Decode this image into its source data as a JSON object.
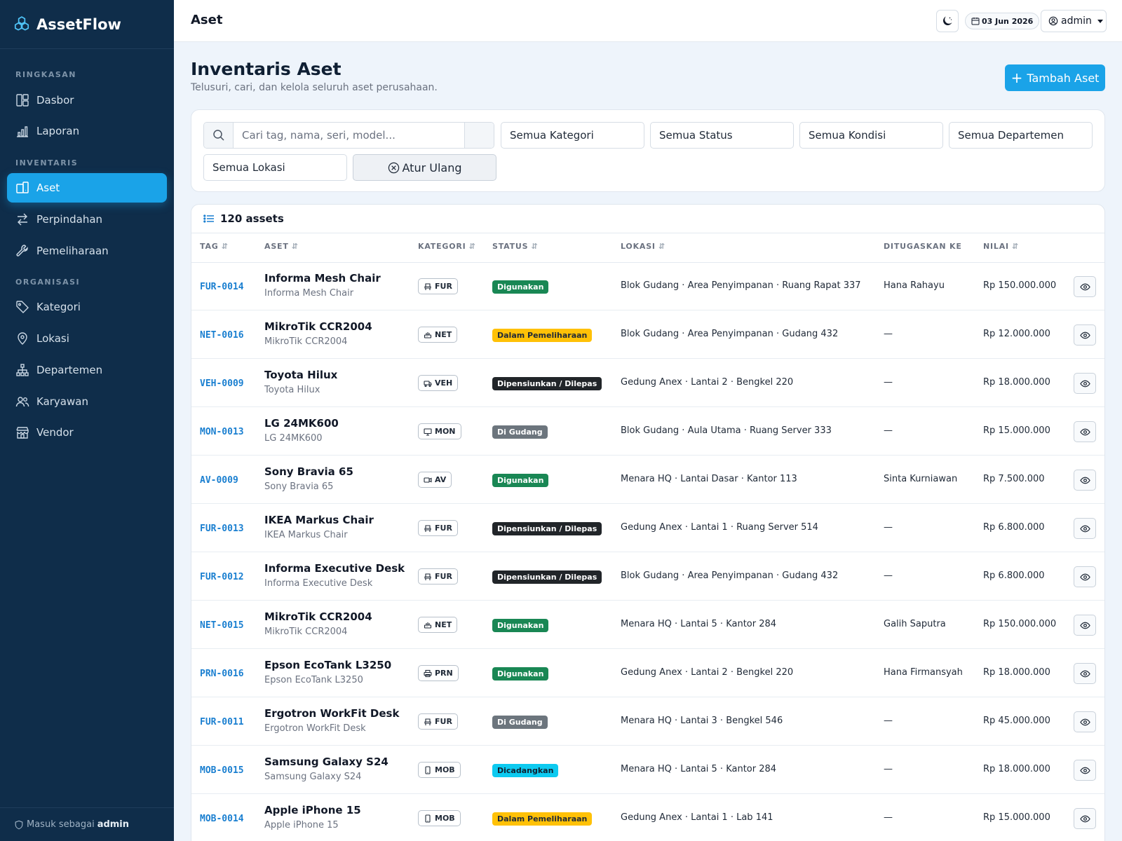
{
  "app": {
    "brand": "AssetFlow"
  },
  "sidebar": {
    "sections": [
      {
        "label": "RINGKASAN"
      },
      {
        "label": "INVENTARIS"
      },
      {
        "label": "ORGANISASI"
      }
    ],
    "items": [
      {
        "label": "Dasbor",
        "icon": "dashboard-icon"
      },
      {
        "label": "Laporan",
        "icon": "chart-icon"
      },
      {
        "label": "Aset",
        "icon": "asset-icon",
        "active": true
      },
      {
        "label": "Perpindahan",
        "icon": "transfer-icon"
      },
      {
        "label": "Pemeliharaan",
        "icon": "wrench-icon"
      },
      {
        "label": "Kategori",
        "icon": "tag-icon"
      },
      {
        "label": "Lokasi",
        "icon": "location-icon"
      },
      {
        "label": "Departemen",
        "icon": "org-icon"
      },
      {
        "label": "Karyawan",
        "icon": "people-icon"
      },
      {
        "label": "Vendor",
        "icon": "shop-icon"
      }
    ],
    "footer": {
      "prefix": "Masuk sebagai",
      "user": "admin"
    }
  },
  "topbar": {
    "title": "Aset",
    "date": "03 Jun 2026",
    "user": "admin"
  },
  "page": {
    "title": "Inventaris Aset",
    "subtitle": "Telusuri, cari, dan kelola seluruh aset perusahaan.",
    "add_button": "Tambah Aset"
  },
  "filters": {
    "search_placeholder": "Cari tag, nama, seri, model...",
    "category": "Semua Kategori",
    "status": "Semua Status",
    "condition": "Semua Kondisi",
    "department": "Semua Departemen",
    "location": "Semua Lokasi",
    "reset": "Atur Ulang"
  },
  "table": {
    "count_label": "120 assets",
    "columns": {
      "tag": "TAG",
      "asset": "ASET",
      "category": "KATEGORI",
      "status": "STATUS",
      "location": "LOKASI",
      "assigned": "DITUGASKAN KE",
      "value": "NILAI"
    },
    "rows": [
      {
        "tag": "FUR-0014",
        "name": "Informa Mesh Chair",
        "model": "Informa Mesh Chair",
        "cat": "FUR",
        "status": "Digunakan",
        "status_style": "green",
        "loc": "Blok Gudang · Area Penyimpanan · Ruang Rapat 337",
        "assigned": "Hana Rahayu",
        "value": "Rp 150.000.000"
      },
      {
        "tag": "NET-0016",
        "name": "MikroTik CCR2004",
        "model": "MikroTik CCR2004",
        "cat": "NET",
        "status": "Dalam Pemeliharaan",
        "status_style": "yellow",
        "loc": "Blok Gudang · Area Penyimpanan · Gudang 432",
        "assigned": "—",
        "value": "Rp 12.000.000"
      },
      {
        "tag": "VEH-0009",
        "name": "Toyota Hilux",
        "model": "Toyota Hilux",
        "cat": "VEH",
        "status": "Dipensiunkan / Dilepas",
        "status_style": "dark",
        "loc": "Gedung Anex · Lantai 2 · Bengkel 220",
        "assigned": "—",
        "value": "Rp 18.000.000"
      },
      {
        "tag": "MON-0013",
        "name": "LG 24MK600",
        "model": "LG 24MK600",
        "cat": "MON",
        "status": "Di Gudang",
        "status_style": "gray",
        "loc": "Blok Gudang · Aula Utama · Ruang Server 333",
        "assigned": "—",
        "value": "Rp 15.000.000"
      },
      {
        "tag": "AV-0009",
        "name": "Sony Bravia 65",
        "model": "Sony Bravia 65",
        "cat": "AV",
        "status": "Digunakan",
        "status_style": "green",
        "loc": "Menara HQ · Lantai Dasar · Kantor 113",
        "assigned": "Sinta Kurniawan",
        "value": "Rp 7.500.000"
      },
      {
        "tag": "FUR-0013",
        "name": "IKEA Markus Chair",
        "model": "IKEA Markus Chair",
        "cat": "FUR",
        "status": "Dipensiunkan / Dilepas",
        "status_style": "dark",
        "loc": "Gedung Anex · Lantai 1 · Ruang Server 514",
        "assigned": "—",
        "value": "Rp 6.800.000"
      },
      {
        "tag": "FUR-0012",
        "name": "Informa Executive Desk",
        "model": "Informa Executive Desk",
        "cat": "FUR",
        "status": "Dipensiunkan / Dilepas",
        "status_style": "dark",
        "loc": "Blok Gudang · Area Penyimpanan · Gudang 432",
        "assigned": "—",
        "value": "Rp 6.800.000"
      },
      {
        "tag": "NET-0015",
        "name": "MikroTik CCR2004",
        "model": "MikroTik CCR2004",
        "cat": "NET",
        "status": "Digunakan",
        "status_style": "green",
        "loc": "Menara HQ · Lantai 5 · Kantor 284",
        "assigned": "Galih Saputra",
        "value": "Rp 150.000.000"
      },
      {
        "tag": "PRN-0016",
        "name": "Epson EcoTank L3250",
        "model": "Epson EcoTank L3250",
        "cat": "PRN",
        "status": "Digunakan",
        "status_style": "green",
        "loc": "Gedung Anex · Lantai 2 · Bengkel 220",
        "assigned": "Hana Firmansyah",
        "value": "Rp 18.000.000"
      },
      {
        "tag": "FUR-0011",
        "name": "Ergotron WorkFit Desk",
        "model": "Ergotron WorkFit Desk",
        "cat": "FUR",
        "status": "Di Gudang",
        "status_style": "gray",
        "loc": "Menara HQ · Lantai 3 · Bengkel 546",
        "assigned": "—",
        "value": "Rp 45.000.000"
      },
      {
        "tag": "MOB-0015",
        "name": "Samsung Galaxy S24",
        "model": "Samsung Galaxy S24",
        "cat": "MOB",
        "status": "Dicadangkan",
        "status_style": "cyan",
        "loc": "Menara HQ · Lantai 5 · Kantor 284",
        "assigned": "—",
        "value": "Rp 18.000.000"
      },
      {
        "tag": "MOB-0014",
        "name": "Apple iPhone 15",
        "model": "Apple iPhone 15",
        "cat": "MOB",
        "status": "Dalam Pemeliharaan",
        "status_style": "yellow",
        "loc": "Gedung Anex · Lantai 1 · Lab 141",
        "assigned": "—",
        "value": "Rp 15.000.000"
      }
    ]
  }
}
